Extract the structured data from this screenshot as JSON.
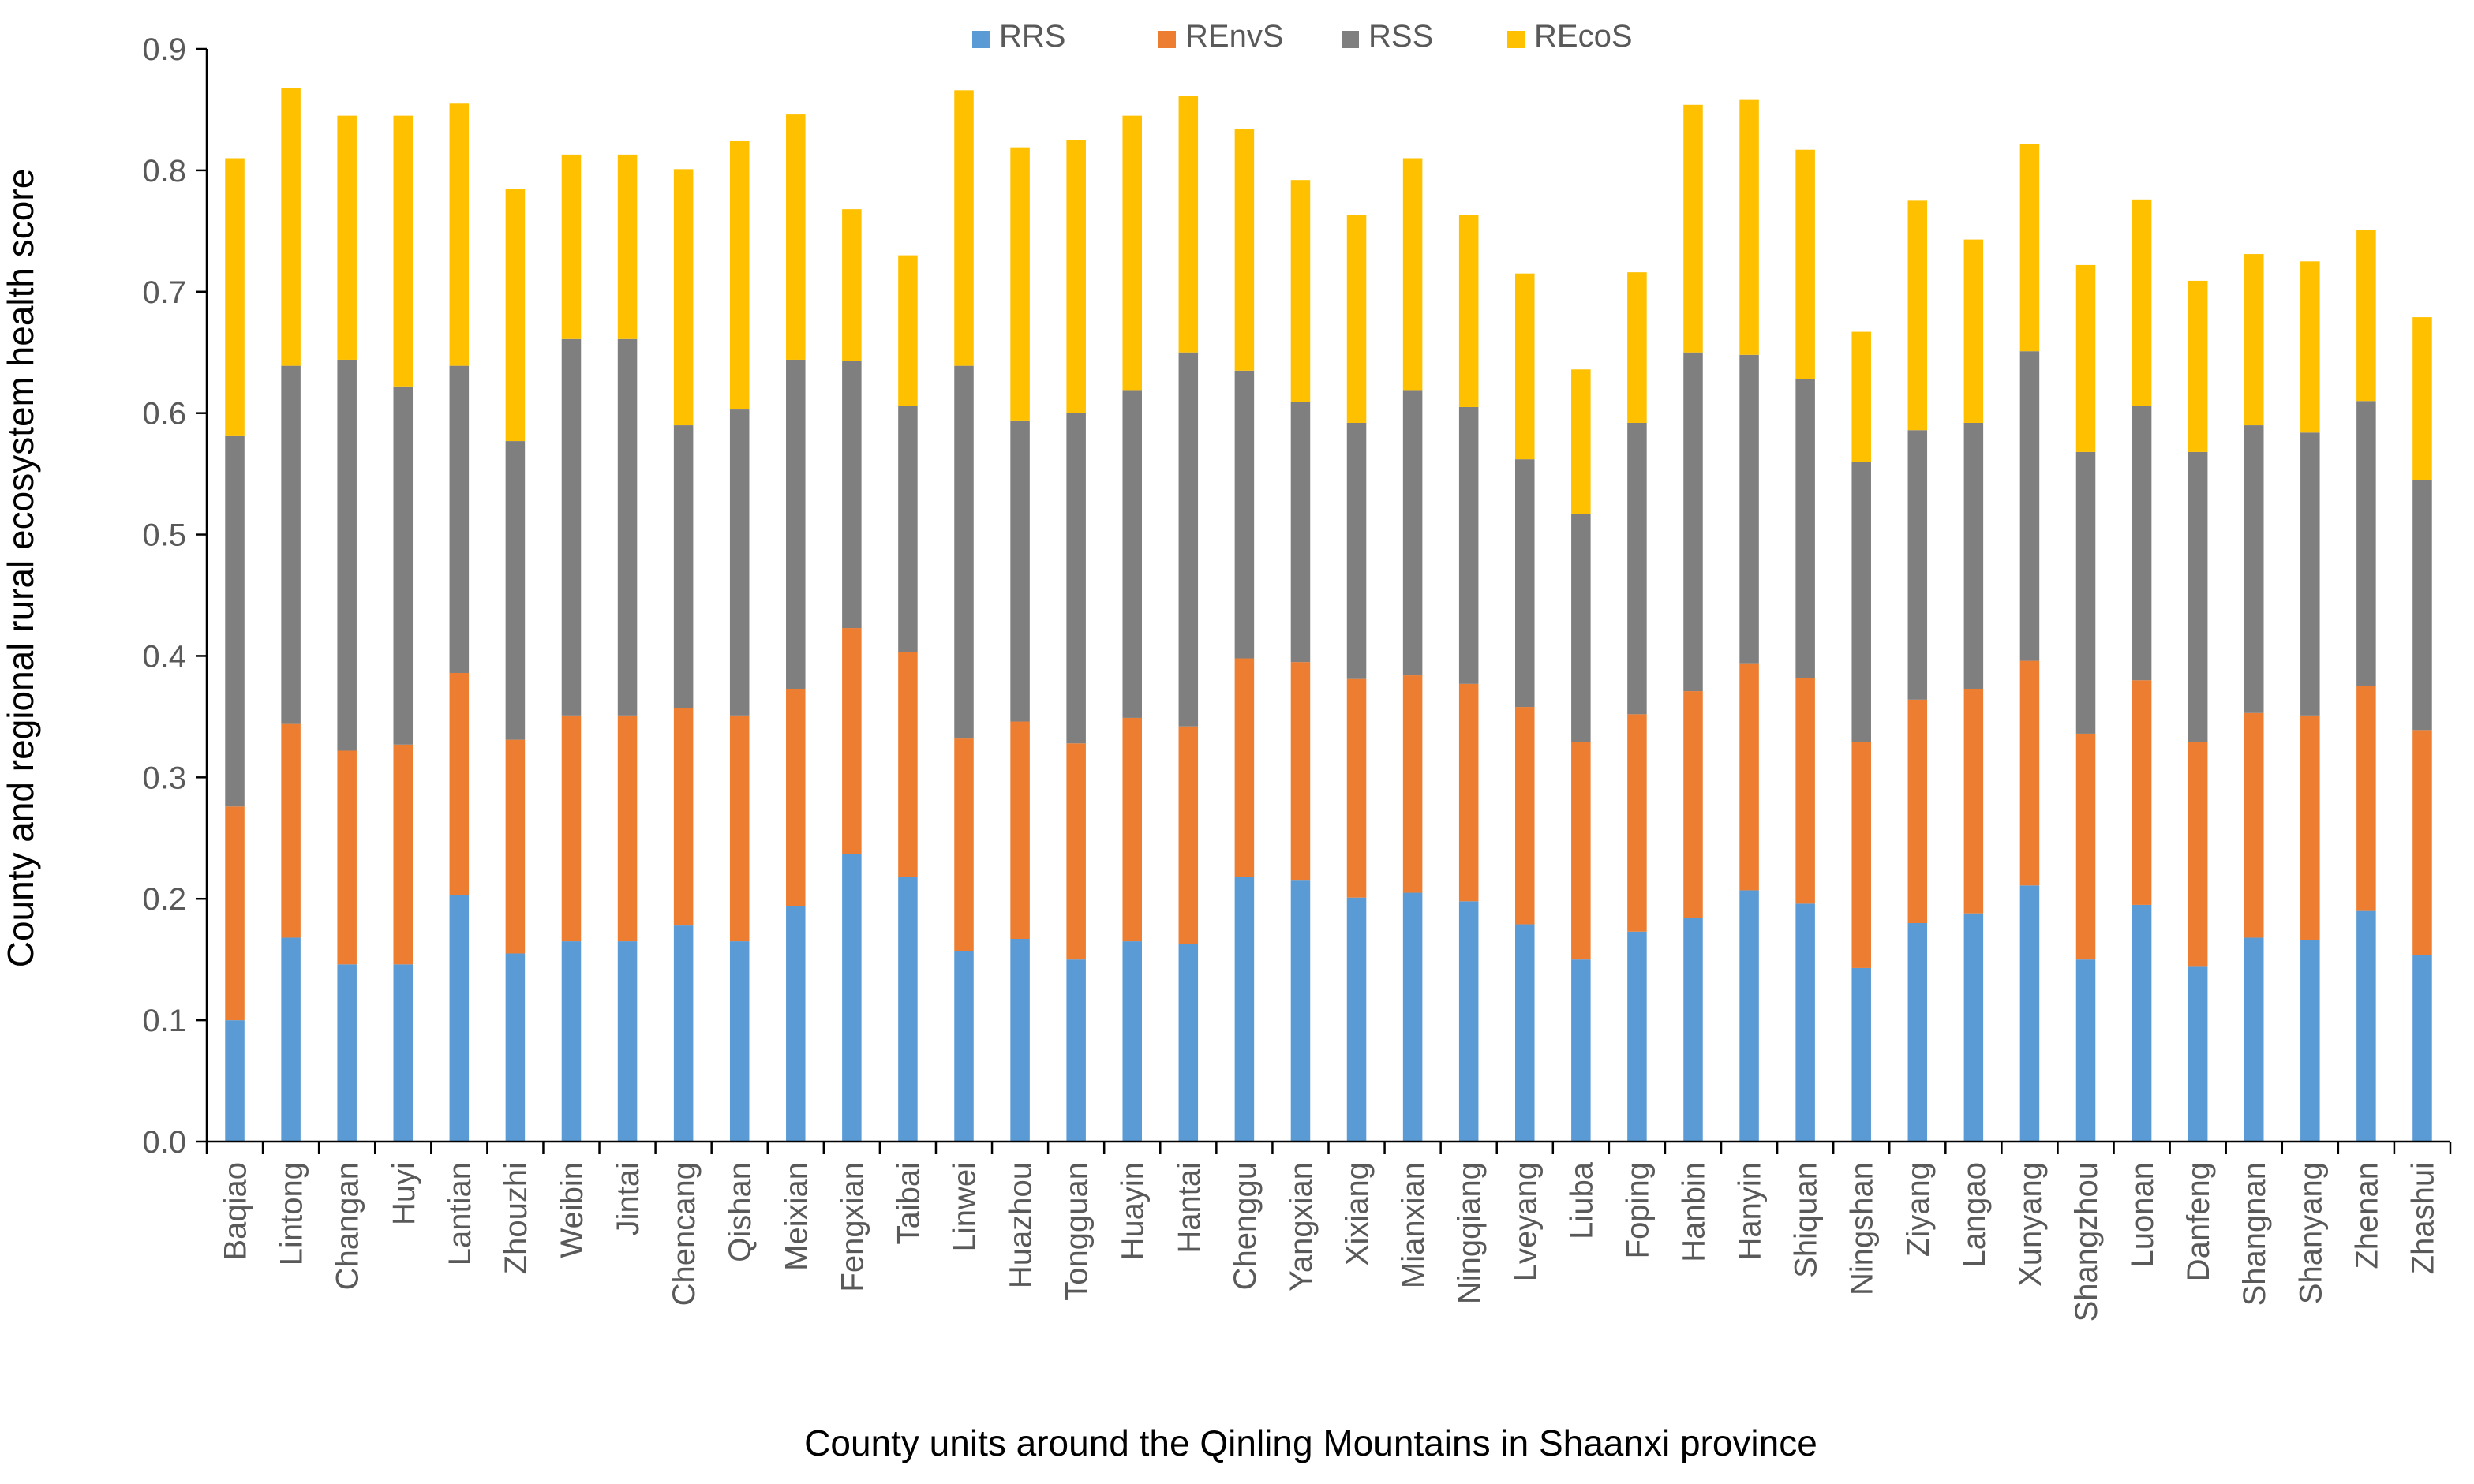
{
  "chart_data": {
    "type": "stacked-bar",
    "title": "",
    "xlabel": "County units around the Qinling Mountains in Shaanxi province",
    "ylabel": "County and regional rural ecosystem health score",
    "ylim": [
      0,
      0.9
    ],
    "yticks": [
      "0.0",
      "0.1",
      "0.2",
      "0.3",
      "0.4",
      "0.5",
      "0.6",
      "0.7",
      "0.8",
      "0.9"
    ],
    "legend_position": "top-center",
    "grid": false,
    "categories": [
      "Baqiao",
      "Lintong",
      "Changan",
      "Huyi",
      "Lantian",
      "Zhouzhi",
      "Weibin",
      "Jintai",
      "Chencang",
      "Qishan",
      "Meixian",
      "Fengxian",
      "Taibai",
      "Linwei",
      "Huazhou",
      "Tongguan",
      "Huayin",
      "Hantai",
      "Chenggu",
      "Yangxian",
      "Xixiang",
      "Mianxian",
      "Ningqiang",
      "Lveyang",
      "Liuba",
      "Foping",
      "Hanbin",
      "Hanyin",
      "Shiquan",
      "Ningshan",
      "Ziyang",
      "Langao",
      "Xunyang",
      "Shangzhou",
      "Luonan",
      "Danfeng",
      "Shangnan",
      "Shanyang",
      "Zhenan",
      "Zhashui"
    ],
    "series": [
      {
        "name": "RRS",
        "color": "#5B9BD5",
        "values": [
          0.1,
          0.168,
          0.146,
          0.146,
          0.203,
          0.155,
          0.165,
          0.165,
          0.178,
          0.165,
          0.194,
          0.237,
          0.218,
          0.157,
          0.167,
          0.15,
          0.165,
          0.163,
          0.218,
          0.215,
          0.201,
          0.205,
          0.198,
          0.179,
          0.15,
          0.173,
          0.184,
          0.207,
          0.196,
          0.143,
          0.18,
          0.188,
          0.211,
          0.15,
          0.195,
          0.144,
          0.168,
          0.166,
          0.19,
          0.154
        ]
      },
      {
        "name": "REnvS",
        "color": "#ED7D31",
        "values": [
          0.176,
          0.176,
          0.176,
          0.181,
          0.183,
          0.176,
          0.186,
          0.186,
          0.179,
          0.186,
          0.179,
          0.186,
          0.185,
          0.175,
          0.179,
          0.178,
          0.184,
          0.179,
          0.18,
          0.18,
          0.18,
          0.179,
          0.179,
          0.179,
          0.179,
          0.179,
          0.187,
          0.187,
          0.186,
          0.186,
          0.184,
          0.185,
          0.185,
          0.186,
          0.185,
          0.185,
          0.185,
          0.185,
          0.185,
          0.185
        ]
      },
      {
        "name": "RSS",
        "color": "#7F7F7F",
        "values": [
          0.305,
          0.295,
          0.322,
          0.295,
          0.253,
          0.246,
          0.31,
          0.31,
          0.233,
          0.252,
          0.271,
          0.22,
          0.203,
          0.307,
          0.248,
          0.272,
          0.27,
          0.308,
          0.237,
          0.214,
          0.211,
          0.235,
          0.228,
          0.204,
          0.188,
          0.24,
          0.279,
          0.254,
          0.246,
          0.231,
          0.222,
          0.219,
          0.255,
          0.232,
          0.226,
          0.239,
          0.237,
          0.233,
          0.235,
          0.206
        ]
      },
      {
        "name": "REcoS",
        "color": "#FFC000",
        "values": [
          0.229,
          0.229,
          0.201,
          0.223,
          0.216,
          0.208,
          0.152,
          0.152,
          0.211,
          0.221,
          0.202,
          0.125,
          0.124,
          0.227,
          0.225,
          0.225,
          0.226,
          0.211,
          0.199,
          0.183,
          0.171,
          0.191,
          0.158,
          0.153,
          0.119,
          0.124,
          0.204,
          0.21,
          0.189,
          0.107,
          0.189,
          0.151,
          0.171,
          0.154,
          0.17,
          0.141,
          0.141,
          0.141,
          0.141,
          0.134
        ]
      }
    ]
  }
}
